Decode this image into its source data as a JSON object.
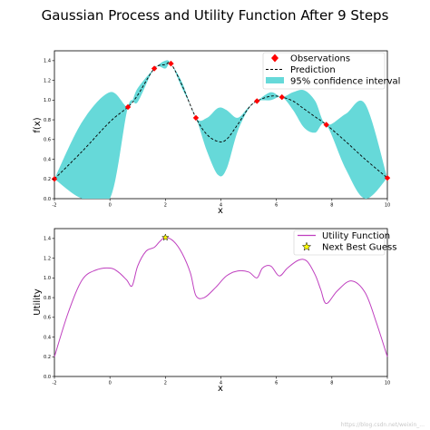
{
  "figure": {
    "title": "Gaussian Process and Utility Function After 9 Steps",
    "watermark": "https://blog.csdn.net/weixin_..."
  },
  "chart_data": [
    {
      "type": "line",
      "name": "gp",
      "xlabel": "x",
      "ylabel": "f(x)",
      "xlim": [
        -2,
        10
      ],
      "ylim": [
        0,
        1.5
      ],
      "xticks": [
        -2,
        0,
        2,
        4,
        6,
        8,
        10
      ],
      "yticks": [
        0.0,
        0.2,
        0.4,
        0.6,
        0.8,
        1.0,
        1.2,
        1.4
      ],
      "grid": false,
      "legend": {
        "placement": "top-right",
        "entries": [
          "Observations",
          "Prediction",
          "95% confidence interval"
        ]
      },
      "colors": {
        "observations": "#ff0000",
        "prediction": "#000000",
        "confidence": "#66d9d9"
      },
      "observations": {
        "x": [
          -2.0,
          0.65,
          1.6,
          2.2,
          3.1,
          5.3,
          6.2,
          7.8,
          10.0
        ],
        "y": [
          0.2,
          0.93,
          1.32,
          1.37,
          0.82,
          0.99,
          1.03,
          0.75,
          0.21
        ]
      },
      "prediction": {
        "x": [
          -2.0,
          -1.0,
          0.0,
          0.65,
          1.0,
          1.6,
          2.0,
          2.2,
          2.6,
          3.1,
          3.5,
          3.9,
          4.2,
          4.6,
          5.0,
          5.3,
          5.8,
          6.2,
          6.6,
          7.0,
          7.4,
          7.8,
          8.5,
          9.2,
          10.0
        ],
        "y": [
          0.2,
          0.48,
          0.78,
          0.93,
          1.05,
          1.32,
          1.36,
          1.37,
          1.15,
          0.82,
          0.65,
          0.58,
          0.6,
          0.75,
          0.92,
          0.99,
          1.04,
          1.03,
          0.99,
          0.91,
          0.83,
          0.75,
          0.58,
          0.4,
          0.21
        ]
      },
      "confidence_upper": [
        0.2,
        0.78,
        1.08,
        0.93,
        1.12,
        1.32,
        1.4,
        1.37,
        1.18,
        0.82,
        0.82,
        0.92,
        0.9,
        0.82,
        0.93,
        0.99,
        1.08,
        1.03,
        1.08,
        1.1,
        0.99,
        0.75,
        0.86,
        0.96,
        0.21
      ],
      "confidence_lower": [
        0.2,
        0.0,
        0.0,
        0.93,
        0.98,
        1.32,
        1.32,
        1.37,
        1.12,
        0.82,
        0.48,
        0.24,
        0.3,
        0.68,
        0.91,
        0.99,
        1.0,
        1.03,
        0.9,
        0.72,
        0.67,
        0.75,
        0.3,
        0.0,
        0.21
      ]
    },
    {
      "type": "line",
      "name": "utility",
      "xlabel": "x",
      "ylabel": "Utility",
      "xlim": [
        -2,
        10
      ],
      "ylim": [
        0,
        1.5
      ],
      "xticks": [
        -2,
        0,
        2,
        4,
        6,
        8,
        10
      ],
      "yticks": [
        0.0,
        0.2,
        0.4,
        0.6,
        0.8,
        1.0,
        1.2,
        1.4
      ],
      "grid": false,
      "legend": {
        "placement": "top-right",
        "entries": [
          "Utility Function",
          "Next Best Guess"
        ]
      },
      "colors": {
        "utility": "#bf3fbf",
        "next_best": "#ffff00"
      },
      "utility": {
        "x": [
          -2.0,
          -1.5,
          -1.0,
          -0.5,
          0.0,
          0.3,
          0.6,
          0.8,
          1.0,
          1.3,
          1.6,
          1.8,
          2.0,
          2.3,
          2.6,
          2.9,
          3.1,
          3.4,
          3.8,
          4.2,
          4.6,
          5.0,
          5.3,
          5.5,
          5.8,
          6.1,
          6.4,
          6.8,
          7.1,
          7.4,
          7.6,
          7.8,
          8.2,
          8.7,
          9.2,
          9.6,
          10.0
        ],
        "y": [
          0.2,
          0.65,
          0.98,
          1.08,
          1.1,
          1.06,
          0.98,
          0.92,
          1.12,
          1.27,
          1.31,
          1.37,
          1.41,
          1.37,
          1.25,
          1.05,
          0.82,
          0.8,
          0.9,
          1.02,
          1.07,
          1.06,
          1.0,
          1.1,
          1.12,
          1.02,
          1.1,
          1.18,
          1.17,
          1.03,
          0.88,
          0.74,
          0.87,
          0.97,
          0.85,
          0.55,
          0.2
        ]
      },
      "next_best": {
        "x": 2.0,
        "y": 1.41
      }
    }
  ]
}
